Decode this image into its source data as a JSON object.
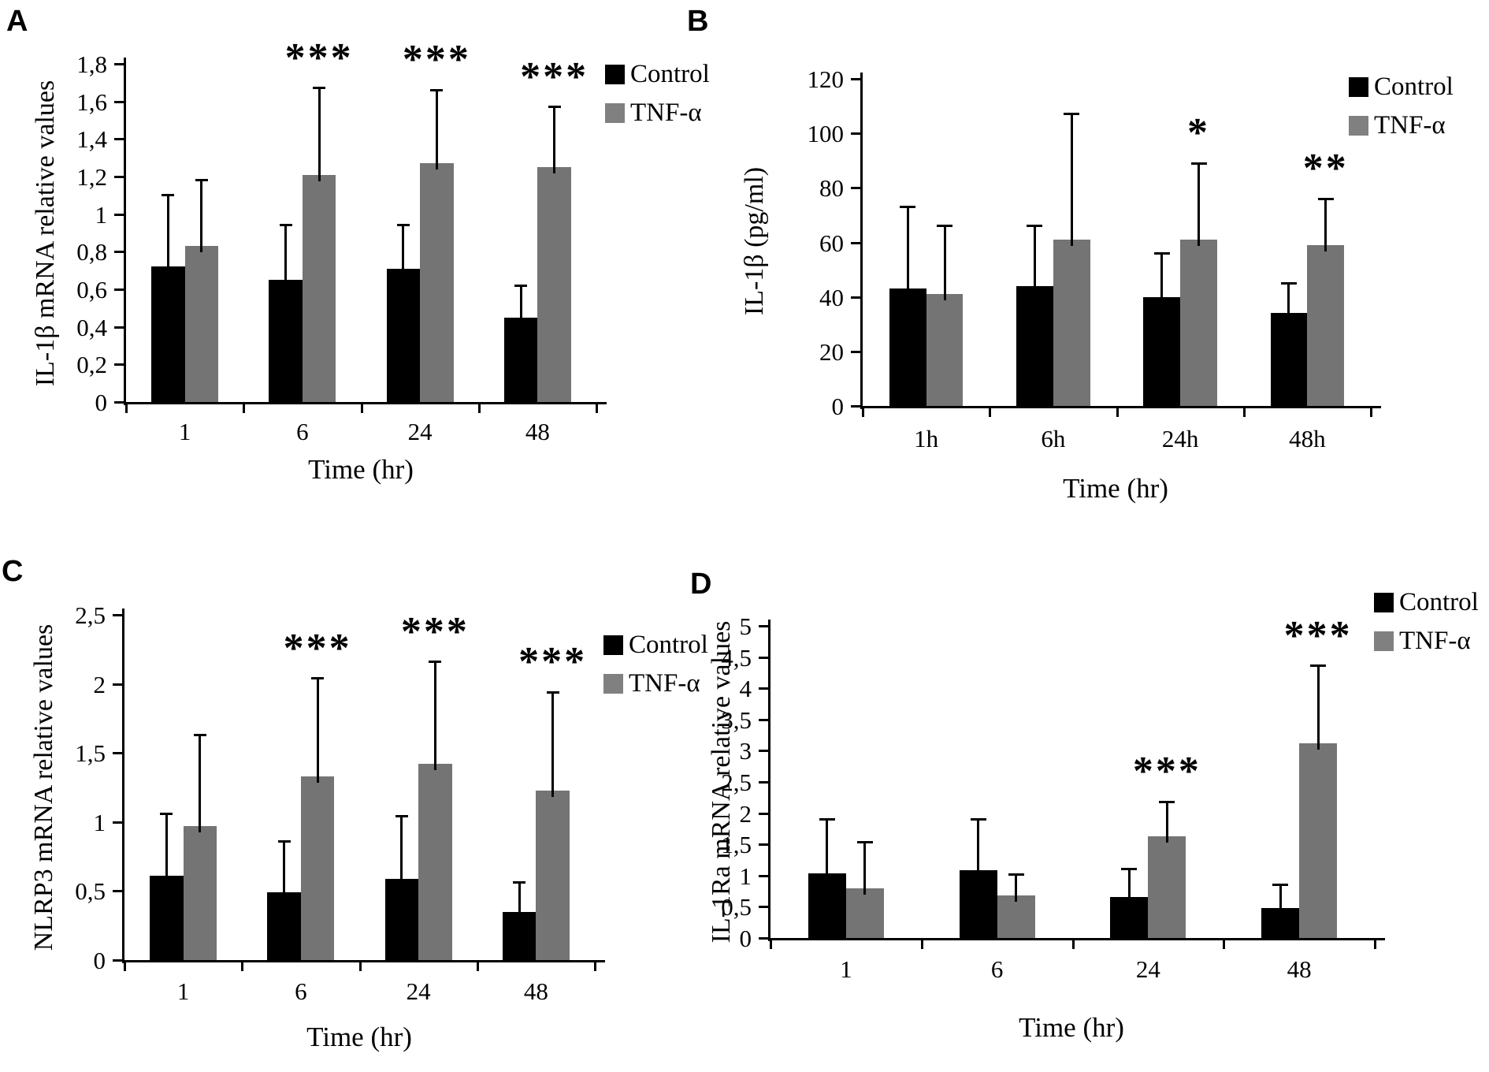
{
  "figure": {
    "legend": {
      "control": "Control",
      "tnf": "TNF-α"
    },
    "colors": {
      "control_bar": "#000000",
      "tnf_bar": "#747474",
      "legend_tnf_swatch": "#808080",
      "axis": "#000000",
      "background": "#ffffff"
    }
  },
  "chart_data": [
    {
      "type": "bar",
      "panel": "A",
      "ylabel": "IL-1β mRNA relative values",
      "xlabel": "Time (hr)",
      "categories": [
        "1",
        "6",
        "24",
        "48"
      ],
      "ylim": [
        0,
        1.8
      ],
      "ytick_labels": [
        "0",
        "0,2",
        "0,4",
        "0,6",
        "0,8",
        "1",
        "1,2",
        "1,4",
        "1,6",
        "1,8"
      ],
      "grid": false,
      "legend_position": "right-top",
      "series": [
        {
          "name": "Control",
          "values": [
            0.72,
            0.65,
            0.71,
            0.45
          ],
          "errors_upper": [
            0.38,
            0.29,
            0.23,
            0.17
          ]
        },
        {
          "name": "TNF-α",
          "values": [
            0.83,
            1.21,
            1.27,
            1.25
          ],
          "errors_upper": [
            0.35,
            0.46,
            0.39,
            0.32
          ]
        }
      ],
      "significance": [
        "",
        "***",
        "***",
        "***"
      ]
    },
    {
      "type": "bar",
      "panel": "B",
      "ylabel": "IL-1β (pg/ml)",
      "xlabel": "Time (hr)",
      "categories": [
        "1h",
        "6h",
        "24h",
        "48h"
      ],
      "ylim": [
        0,
        120
      ],
      "ytick_labels": [
        "0",
        "20",
        "40",
        "60",
        "80",
        "100",
        "120"
      ],
      "grid": false,
      "legend_position": "right-top",
      "series": [
        {
          "name": "Control",
          "values": [
            43,
            44,
            40,
            34
          ],
          "errors_upper": [
            30,
            22,
            16,
            11
          ]
        },
        {
          "name": "TNF-α",
          "values": [
            41,
            61,
            61,
            59
          ],
          "errors_upper": [
            25,
            46,
            28,
            17
          ]
        }
      ],
      "significance": [
        "",
        "",
        "*",
        "**"
      ]
    },
    {
      "type": "bar",
      "panel": "C",
      "ylabel": "NLRP3 mRNA relative values",
      "xlabel": "Time (hr)",
      "categories": [
        "1",
        "6",
        "24",
        "48"
      ],
      "ylim": [
        0,
        2.5
      ],
      "ytick_labels": [
        "0",
        "0,5",
        "1",
        "1,5",
        "2",
        "2,5"
      ],
      "grid": false,
      "legend_position": "right-top",
      "series": [
        {
          "name": "Control",
          "values": [
            0.61,
            0.49,
            0.59,
            0.35
          ],
          "errors_upper": [
            0.45,
            0.37,
            0.45,
            0.21
          ]
        },
        {
          "name": "TNF-α",
          "values": [
            0.97,
            1.33,
            1.42,
            1.23
          ],
          "errors_upper": [
            0.66,
            0.71,
            0.74,
            0.71
          ]
        }
      ],
      "significance": [
        "",
        "***",
        "***",
        "***"
      ]
    },
    {
      "type": "bar",
      "panel": "D",
      "ylabel": "IL-1Ra mRNA relative values",
      "xlabel": "Time (hr)",
      "categories": [
        "1",
        "6",
        "24",
        "48"
      ],
      "ylim": [
        0,
        5
      ],
      "ytick_labels": [
        "0",
        "0,5",
        "1",
        "1,5",
        "2",
        "2,5",
        "3",
        "3,5",
        "4",
        "4,5",
        "5"
      ],
      "grid": false,
      "legend_position": "right-top",
      "series": [
        {
          "name": "Control",
          "values": [
            1.03,
            1.08,
            0.66,
            0.48
          ],
          "errors_upper": [
            0.87,
            0.82,
            0.44,
            0.37
          ]
        },
        {
          "name": "TNF-α",
          "values": [
            0.8,
            0.68,
            1.63,
            3.12
          ],
          "errors_upper": [
            0.73,
            0.34,
            0.55,
            1.24
          ]
        }
      ],
      "significance": [
        "",
        "",
        "***",
        "***"
      ]
    }
  ]
}
